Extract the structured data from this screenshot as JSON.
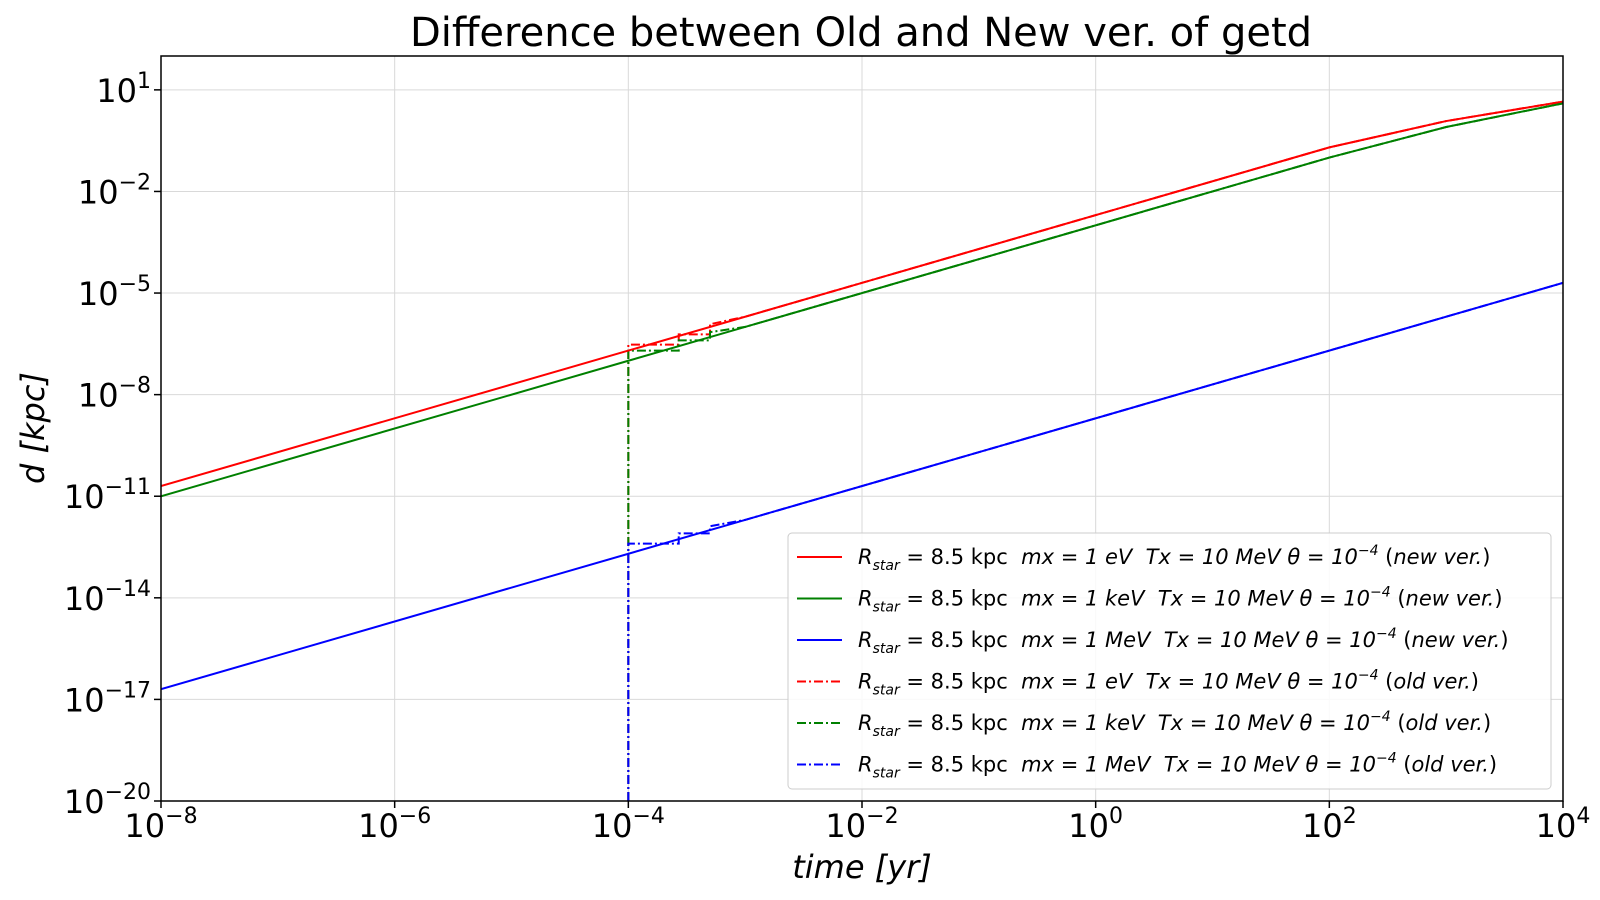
{
  "chart_data": {
    "type": "line",
    "title": "Difference between Old and New ver. of getd",
    "xlabel": "time [yr]",
    "ylabel": "d [kpc]",
    "xscale": "log",
    "yscale": "log",
    "xlim": [
      1e-08,
      10000.0
    ],
    "ylim": [
      1e-20,
      100.0
    ],
    "grid": true,
    "legend_position": "lower-right",
    "x_ticks": [
      {
        "value": 1e-08,
        "base": "10",
        "exp": "−8"
      },
      {
        "value": 1e-06,
        "base": "10",
        "exp": "−6"
      },
      {
        "value": 0.0001,
        "base": "10",
        "exp": "−4"
      },
      {
        "value": 0.01,
        "base": "10",
        "exp": "−2"
      },
      {
        "value": 1.0,
        "base": "10",
        "exp": "0"
      },
      {
        "value": 100.0,
        "base": "10",
        "exp": "2"
      },
      {
        "value": 10000.0,
        "base": "10",
        "exp": "4"
      }
    ],
    "y_ticks": [
      {
        "value": 10.0,
        "base": "10",
        "exp": "1"
      },
      {
        "value": 0.01,
        "base": "10",
        "exp": "−2"
      },
      {
        "value": 1e-05,
        "base": "10",
        "exp": "−5"
      },
      {
        "value": 1e-08,
        "base": "10",
        "exp": "−8"
      },
      {
        "value": 1e-11,
        "base": "10",
        "exp": "−11"
      },
      {
        "value": 1e-14,
        "base": "10",
        "exp": "−14"
      },
      {
        "value": 1e-17,
        "base": "10",
        "exp": "−17"
      },
      {
        "value": 1e-20,
        "base": "10",
        "exp": "−20"
      }
    ],
    "series": [
      {
        "name": "R_star = 8.5 kpc  mx = 1 eV  Tx = 10 MeV θ = 10^−4 (new ver.)",
        "color": "#ff0000",
        "style": "solid",
        "x": [
          1e-08,
          0.0001,
          100.0,
          1000.0,
          10000.0
        ],
        "y": [
          2e-11,
          2e-07,
          0.2,
          1.2,
          4.5
        ]
      },
      {
        "name": "R_star = 8.5 kpc  mx = 1 keV  Tx = 10 MeV θ = 10^−4 (new ver.)",
        "color": "#008000",
        "style": "solid",
        "x": [
          1e-08,
          0.0001,
          100.0,
          1000.0,
          10000.0
        ],
        "y": [
          1e-11,
          1e-07,
          0.1,
          0.8,
          4.0
        ]
      },
      {
        "name": "R_star = 8.5 kpc  mx = 1 MeV  Tx = 10 MeV θ = 10^−4 (new ver.)",
        "color": "#0000ff",
        "style": "solid",
        "x": [
          1e-08,
          10000.0
        ],
        "y": [
          2e-17,
          2e-05
        ]
      },
      {
        "name": "R_star = 8.5 kpc  mx = 1 eV  Tx = 10 MeV θ = 10^−4 (old ver.)",
        "color": "#ff0000",
        "style": "dashdot",
        "x": [
          0.0001,
          0.0001,
          0.00027,
          0.00027,
          0.0005,
          0.0005,
          0.001,
          0.01,
          0.1,
          1.0,
          100.0,
          1000.0,
          10000.0
        ],
        "y": [
          1e-20,
          3e-07,
          3e-07,
          6e-07,
          6e-07,
          1.2e-06,
          2e-06,
          2e-05,
          0.0002,
          0.002,
          0.2,
          1.2,
          4.5
        ]
      },
      {
        "name": "R_star = 8.5 kpc  mx = 1 keV  Tx = 10 MeV θ = 10^−4 (old ver.)",
        "color": "#008000",
        "style": "dashdot",
        "x": [
          0.0001,
          0.0001,
          0.00027,
          0.00027,
          0.0005,
          0.0005,
          0.001,
          0.01,
          0.1,
          1.0,
          100.0,
          1000.0,
          10000.0
        ],
        "y": [
          1e-20,
          2e-07,
          2e-07,
          4e-07,
          4e-07,
          7e-07,
          1e-06,
          1e-05,
          0.0001,
          0.001,
          0.1,
          0.8,
          4.0
        ]
      },
      {
        "name": "R_star = 8.5 kpc  mx = 1 MeV  Tx = 10 MeV θ = 10^−4 (old ver.)",
        "color": "#0000ff",
        "style": "dashdot",
        "x": [
          0.0001,
          0.0001,
          0.00027,
          0.00027,
          0.0005,
          0.0005,
          0.001,
          0.01,
          0.1,
          1.0,
          100.0,
          10000.0
        ],
        "y": [
          1e-20,
          4e-13,
          4e-13,
          8e-13,
          8e-13,
          1.3e-12,
          2e-12,
          2e-11,
          2e-10,
          2e-09,
          2e-07,
          2e-05
        ]
      }
    ],
    "legend": [
      {
        "mx": "1 eV",
        "ver": "new ver."
      },
      {
        "mx": "1 keV",
        "ver": "new ver."
      },
      {
        "mx": "1 MeV",
        "ver": "new ver."
      },
      {
        "mx": "1 eV",
        "ver": "old ver."
      },
      {
        "mx": "1 keV",
        "ver": "old ver."
      },
      {
        "mx": "1 MeV",
        "ver": "old ver."
      }
    ],
    "legend_common": {
      "r_symbol": "R",
      "r_sub": "star",
      "r_value": " = 8.5 kpc",
      "mx_prefix": "mx = ",
      "tx_text": "Tx = 10 MeV",
      "theta_prefix": "θ = 10",
      "theta_exp": "−4"
    }
  }
}
